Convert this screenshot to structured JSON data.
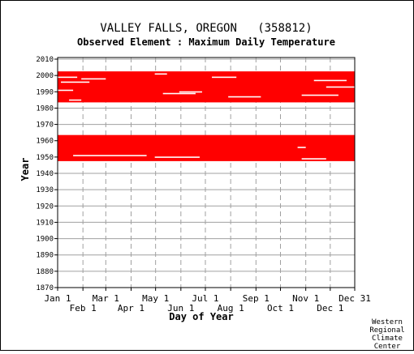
{
  "chart_data": {
    "type": "heatmap",
    "title": "VALLEY FALLS, OREGON   (358812)",
    "subtitle": "Observed Element : Maximum Daily Temperature",
    "xlabel": "Day of Year",
    "ylabel": "Year",
    "credit": [
      "Western",
      "Regional",
      "Climate",
      "Center"
    ],
    "x_ticks_top": [
      {
        "label": "Jan 1",
        "day": 1
      },
      {
        "label": "Mar 1",
        "day": 60
      },
      {
        "label": "May 1",
        "day": 121
      },
      {
        "label": "Jul 1",
        "day": 182
      },
      {
        "label": "Sep 1",
        "day": 244
      },
      {
        "label": "Nov 1",
        "day": 305
      },
      {
        "label": "Dec 31",
        "day": 365
      }
    ],
    "x_ticks_bottom": [
      {
        "label": "Feb 1",
        "day": 32
      },
      {
        "label": "Apr 1",
        "day": 91
      },
      {
        "label": "Jun 1",
        "day": 152
      },
      {
        "label": "Aug 1",
        "day": 213
      },
      {
        "label": "Oct 1",
        "day": 274
      },
      {
        "label": "Dec 1",
        "day": 335
      }
    ],
    "y_ticks": [
      1870,
      1880,
      1890,
      1900,
      1910,
      1920,
      1930,
      1940,
      1950,
      1960,
      1970,
      1980,
      1990,
      2000,
      2010
    ],
    "xlim": [
      1,
      365
    ],
    "ylim": [
      1870,
      2011
    ],
    "series_color": "#ff0000",
    "data_periods": [
      {
        "name": "period-1",
        "start_year": 1947.5,
        "end_year": 1963.5
      },
      {
        "name": "period-2",
        "start_year": 1983.5,
        "end_year": 2002.5
      }
    ],
    "gaps": [
      {
        "year": 1951,
        "from_day": 20,
        "to_day": 110
      },
      {
        "year": 1950,
        "from_day": 120,
        "to_day": 175
      },
      {
        "year": 1949,
        "from_day": 300,
        "to_day": 330
      },
      {
        "year": 1956,
        "from_day": 295,
        "to_day": 305
      },
      {
        "year": 1999,
        "from_day": 1,
        "to_day": 25
      },
      {
        "year": 1998,
        "from_day": 30,
        "to_day": 60
      },
      {
        "year": 1996,
        "from_day": 5,
        "to_day": 40
      },
      {
        "year": 1991,
        "from_day": 1,
        "to_day": 20
      },
      {
        "year": 1990,
        "from_day": 150,
        "to_day": 178
      },
      {
        "year": 1989,
        "from_day": 130,
        "to_day": 170
      },
      {
        "year": 1987,
        "from_day": 210,
        "to_day": 250
      },
      {
        "year": 1988,
        "from_day": 300,
        "to_day": 345
      },
      {
        "year": 1993,
        "from_day": 330,
        "to_day": 365
      },
      {
        "year": 1997,
        "from_day": 315,
        "to_day": 355
      },
      {
        "year": 1985,
        "from_day": 15,
        "to_day": 30
      },
      {
        "year": 1983,
        "from_day": 60,
        "to_day": 120
      },
      {
        "year": 2001,
        "from_day": 120,
        "to_day": 135
      },
      {
        "year": 1999,
        "from_day": 190,
        "to_day": 220
      }
    ]
  }
}
